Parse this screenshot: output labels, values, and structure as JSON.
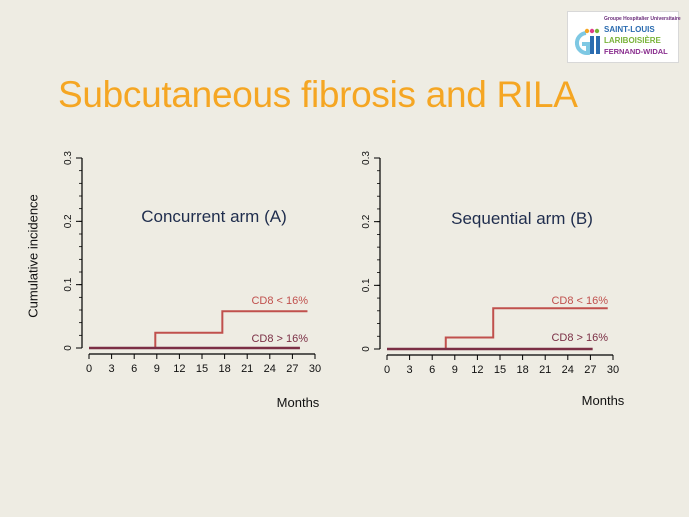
{
  "slide": {
    "title": "Subcutaneous fibrosis and RILA"
  },
  "logo": {
    "top_text": "Groupe Hospitalier Universitaire",
    "line1": "SAINT-LOUIS",
    "line2": "LARIBOISIÈRE",
    "line3": "FERNAND-WIDAL",
    "colors": {
      "blue": "#2b6cb0",
      "green": "#7ab33a",
      "purple": "#8a2f8f"
    }
  },
  "shared_ylabel": "Cumulative  incidence",
  "chart_data": [
    {
      "type": "line",
      "step": true,
      "title": "Concurrent arm (A)",
      "xlabel": "Months",
      "ylabel": "Cumulative  incidence",
      "xlim": [
        0,
        30
      ],
      "ylim": [
        0,
        0.3
      ],
      "xticks": [
        0,
        3,
        6,
        9,
        12,
        15,
        18,
        21,
        24,
        27,
        30
      ],
      "yticks": [
        0,
        0.1,
        0.2,
        0.3
      ],
      "ytick_labels": [
        "0",
        "0.1",
        "0.2",
        "0.3"
      ],
      "grid": false,
      "series": [
        {
          "name": "CD8 < 16%",
          "color": "#c0504d",
          "x": [
            0,
            8.8,
            8.8,
            17.7,
            17.7,
            29
          ],
          "y": [
            0,
            0,
            0.024,
            0.024,
            0.058,
            0.058
          ]
        },
        {
          "name": "CD8 > 16%",
          "color": "#7b2f45",
          "x": [
            0,
            28
          ],
          "y": [
            0,
            0
          ]
        }
      ]
    },
    {
      "type": "line",
      "step": true,
      "title": "Sequential arm (B)",
      "xlabel": "Months",
      "ylabel": "",
      "xlim": [
        0,
        30
      ],
      "ylim": [
        0,
        0.3
      ],
      "xticks": [
        0,
        3,
        6,
        9,
        12,
        15,
        18,
        21,
        24,
        27,
        30
      ],
      "yticks": [
        0,
        0.1,
        0.2,
        0.3
      ],
      "ytick_labels": [
        "0",
        "0.1",
        "0.2",
        "0.3"
      ],
      "grid": false,
      "series": [
        {
          "name": "CD8 < 16%",
          "color": "#c0504d",
          "x": [
            0,
            7.8,
            7.8,
            14.1,
            14.1,
            29.3
          ],
          "y": [
            0,
            0,
            0.018,
            0.018,
            0.064,
            0.064
          ]
        },
        {
          "name": "CD8 > 16%",
          "color": "#7b2f45",
          "x": [
            0,
            27.3
          ],
          "y": [
            0,
            0
          ]
        }
      ]
    }
  ]
}
